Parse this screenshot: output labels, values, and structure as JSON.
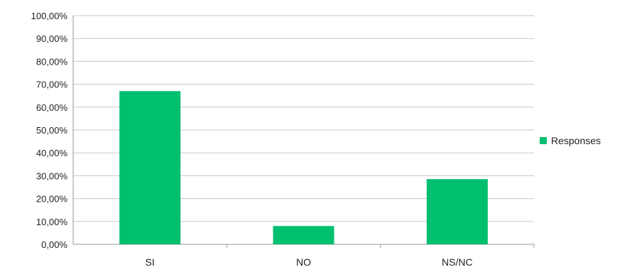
{
  "chart_data": {
    "type": "bar",
    "categories": [
      "SI",
      "NO",
      "NS/NC"
    ],
    "series": [
      {
        "name": "Responses",
        "values": [
          67,
          8,
          28.5
        ]
      }
    ],
    "ylim": [
      0,
      100
    ],
    "yticks": [
      "0,00%",
      "10,00%",
      "20,00%",
      "30,00%",
      "40,00%",
      "50,00%",
      "60,00%",
      "70,00%",
      "80,00%",
      "90,00%",
      "100,00%"
    ],
    "grid": true,
    "legend_position": "right",
    "colors": {
      "bar": "#00bf6f",
      "grid": "#c8c8c8",
      "axis": "#999999"
    }
  }
}
